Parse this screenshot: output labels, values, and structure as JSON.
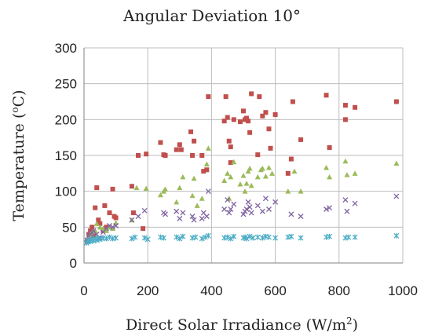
{
  "chart_data": {
    "type": "scatter",
    "title": "Angular Deviation 10°",
    "xlabel_main": "Direct Solar Irradiance (W/m",
    "xlabel_sup": "2",
    "xlabel_end": ")",
    "ylabel_main": "Temperature (",
    "ylabel_sup": "o",
    "ylabel_end": "C)",
    "xlim": [
      0,
      1000
    ],
    "ylim": [
      0,
      300
    ],
    "x_ticks": [
      0,
      200,
      400,
      600,
      800,
      1000
    ],
    "y_ticks": [
      0,
      50,
      100,
      150,
      200,
      250,
      300
    ],
    "grid": true,
    "legend": "none",
    "series": [
      {
        "marker": "square",
        "color": "#c0504d",
        "points": [
          [
            10,
            30
          ],
          [
            15,
            40
          ],
          [
            20,
            45
          ],
          [
            25,
            50
          ],
          [
            30,
            38
          ],
          [
            35,
            77
          ],
          [
            40,
            105
          ],
          [
            45,
            60
          ],
          [
            50,
            55
          ],
          [
            60,
            45
          ],
          [
            65,
            80
          ],
          [
            70,
            50
          ],
          [
            80,
            70
          ],
          [
            90,
            103
          ],
          [
            95,
            65
          ],
          [
            100,
            63
          ],
          [
            150,
            107
          ],
          [
            155,
            70
          ],
          [
            170,
            150
          ],
          [
            185,
            48
          ],
          [
            195,
            152
          ],
          [
            240,
            168
          ],
          [
            250,
            151
          ],
          [
            255,
            150
          ],
          [
            290,
            158
          ],
          [
            300,
            165
          ],
          [
            305,
            158
          ],
          [
            335,
            183
          ],
          [
            340,
            150
          ],
          [
            345,
            170
          ],
          [
            370,
            150
          ],
          [
            375,
            128
          ],
          [
            385,
            130
          ],
          [
            390,
            232
          ],
          [
            440,
            198
          ],
          [
            445,
            232
          ],
          [
            450,
            203
          ],
          [
            455,
            170
          ],
          [
            460,
            162
          ],
          [
            460,
            140
          ],
          [
            470,
            200
          ],
          [
            490,
            197
          ],
          [
            500,
            212
          ],
          [
            505,
            200
          ],
          [
            510,
            202
          ],
          [
            515,
            198
          ],
          [
            520,
            182
          ],
          [
            525,
            236
          ],
          [
            545,
            151
          ],
          [
            550,
            232
          ],
          [
            560,
            205
          ],
          [
            570,
            210
          ],
          [
            580,
            187
          ],
          [
            585,
            160
          ],
          [
            600,
            207
          ],
          [
            640,
            125
          ],
          [
            650,
            145
          ],
          [
            655,
            225
          ],
          [
            680,
            172
          ],
          [
            760,
            234
          ],
          [
            770,
            161
          ],
          [
            820,
            220
          ],
          [
            820,
            200
          ],
          [
            850,
            217
          ],
          [
            980,
            225
          ]
        ]
      },
      {
        "marker": "triangle",
        "color": "#9bbb59",
        "points": [
          [
            15,
            35
          ],
          [
            20,
            40
          ],
          [
            25,
            42
          ],
          [
            35,
            45
          ],
          [
            40,
            55
          ],
          [
            50,
            50
          ],
          [
            60,
            48
          ],
          [
            70,
            45
          ],
          [
            80,
            50
          ],
          [
            90,
            48
          ],
          [
            100,
            56
          ],
          [
            150,
            60
          ],
          [
            165,
            105
          ],
          [
            195,
            104
          ],
          [
            240,
            95
          ],
          [
            250,
            100
          ],
          [
            255,
            103
          ],
          [
            290,
            85
          ],
          [
            300,
            105
          ],
          [
            310,
            120
          ],
          [
            340,
            94
          ],
          [
            345,
            118
          ],
          [
            355,
            80
          ],
          [
            370,
            90
          ],
          [
            385,
            138
          ],
          [
            390,
            160
          ],
          [
            440,
            115
          ],
          [
            450,
            125
          ],
          [
            455,
            90
          ],
          [
            460,
            120
          ],
          [
            470,
            141
          ],
          [
            490,
            110
          ],
          [
            500,
            122
          ],
          [
            505,
            100
          ],
          [
            510,
            111
          ],
          [
            515,
            128
          ],
          [
            520,
            132
          ],
          [
            525,
            108
          ],
          [
            545,
            120
          ],
          [
            555,
            130
          ],
          [
            560,
            132
          ],
          [
            570,
            121
          ],
          [
            580,
            133
          ],
          [
            590,
            125
          ],
          [
            640,
            100
          ],
          [
            660,
            128
          ],
          [
            680,
            100
          ],
          [
            760,
            133
          ],
          [
            770,
            120
          ],
          [
            820,
            142
          ],
          [
            825,
            123
          ],
          [
            850,
            125
          ],
          [
            980,
            139
          ]
        ]
      },
      {
        "marker": "x",
        "color": "#8064a2",
        "points": [
          [
            10,
            32
          ],
          [
            15,
            38
          ],
          [
            20,
            40
          ],
          [
            25,
            42
          ],
          [
            30,
            45
          ],
          [
            40,
            40
          ],
          [
            50,
            35
          ],
          [
            60,
            43
          ],
          [
            70,
            48
          ],
          [
            80,
            52
          ],
          [
            90,
            50
          ],
          [
            100,
            52
          ],
          [
            150,
            60
          ],
          [
            170,
            65
          ],
          [
            190,
            73
          ],
          [
            250,
            70
          ],
          [
            255,
            68
          ],
          [
            290,
            72
          ],
          [
            300,
            62
          ],
          [
            310,
            70
          ],
          [
            340,
            65
          ],
          [
            345,
            60
          ],
          [
            370,
            62
          ],
          [
            375,
            70
          ],
          [
            385,
            65
          ],
          [
            390,
            100
          ],
          [
            440,
            75
          ],
          [
            450,
            88
          ],
          [
            455,
            70
          ],
          [
            460,
            75
          ],
          [
            470,
            82
          ],
          [
            500,
            68
          ],
          [
            505,
            72
          ],
          [
            510,
            75
          ],
          [
            515,
            85
          ],
          [
            520,
            78
          ],
          [
            525,
            70
          ],
          [
            545,
            80
          ],
          [
            560,
            72
          ],
          [
            570,
            90
          ],
          [
            580,
            75
          ],
          [
            600,
            85
          ],
          [
            650,
            68
          ],
          [
            680,
            65
          ],
          [
            760,
            75
          ],
          [
            770,
            77
          ],
          [
            820,
            88
          ],
          [
            825,
            72
          ],
          [
            850,
            83
          ],
          [
            980,
            93
          ]
        ]
      },
      {
        "marker": "asterisk",
        "color": "#4bacc6",
        "points": [
          [
            8,
            28
          ],
          [
            12,
            30
          ],
          [
            15,
            32
          ],
          [
            20,
            30
          ],
          [
            25,
            33
          ],
          [
            30,
            31
          ],
          [
            35,
            34
          ],
          [
            40,
            32
          ],
          [
            45,
            35
          ],
          [
            50,
            33
          ],
          [
            60,
            35
          ],
          [
            70,
            34
          ],
          [
            80,
            36
          ],
          [
            90,
            34
          ],
          [
            100,
            35
          ],
          [
            150,
            34
          ],
          [
            160,
            36
          ],
          [
            190,
            35
          ],
          [
            200,
            33
          ],
          [
            240,
            36
          ],
          [
            250,
            35
          ],
          [
            290,
            36
          ],
          [
            300,
            34
          ],
          [
            310,
            37
          ],
          [
            340,
            35
          ],
          [
            350,
            36
          ],
          [
            370,
            34
          ],
          [
            380,
            36
          ],
          [
            390,
            38
          ],
          [
            440,
            35
          ],
          [
            450,
            36
          ],
          [
            460,
            34
          ],
          [
            470,
            37
          ],
          [
            500,
            35
          ],
          [
            505,
            36
          ],
          [
            510,
            34
          ],
          [
            520,
            37
          ],
          [
            530,
            35
          ],
          [
            545,
            36
          ],
          [
            560,
            35
          ],
          [
            570,
            37
          ],
          [
            580,
            36
          ],
          [
            600,
            35
          ],
          [
            640,
            36
          ],
          [
            650,
            37
          ],
          [
            680,
            35
          ],
          [
            760,
            36
          ],
          [
            770,
            37
          ],
          [
            820,
            35
          ],
          [
            830,
            36
          ],
          [
            850,
            36
          ],
          [
            980,
            38
          ]
        ]
      }
    ]
  }
}
